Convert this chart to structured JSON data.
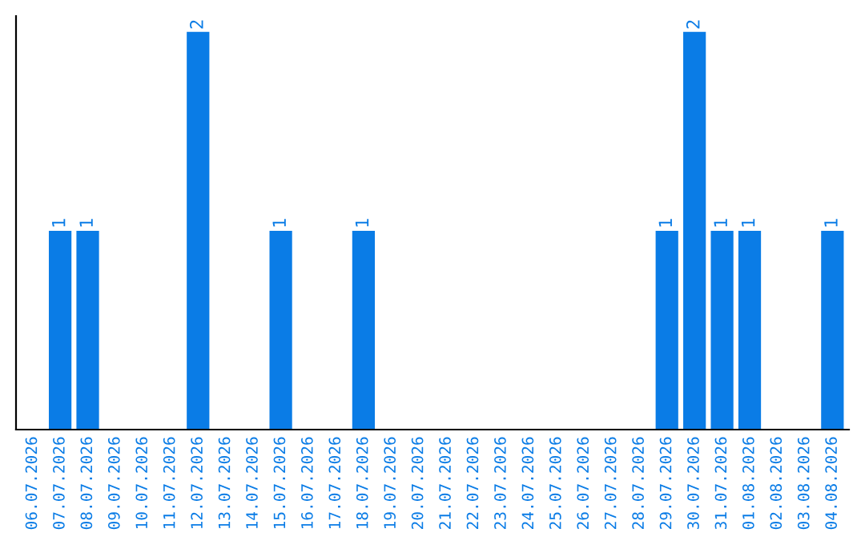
{
  "chart_data": {
    "type": "bar",
    "categories": [
      "06.07.2026",
      "07.07.2026",
      "08.07.2026",
      "09.07.2026",
      "10.07.2026",
      "11.07.2026",
      "12.07.2026",
      "13.07.2026",
      "14.07.2026",
      "15.07.2026",
      "16.07.2026",
      "17.07.2026",
      "18.07.2026",
      "19.07.2026",
      "20.07.2026",
      "21.07.2026",
      "22.07.2026",
      "23.07.2026",
      "24.07.2026",
      "25.07.2026",
      "26.07.2026",
      "27.07.2026",
      "28.07.2026",
      "29.07.2026",
      "30.07.2026",
      "31.07.2026",
      "01.08.2026",
      "02.08.2026",
      "03.08.2026",
      "04.08.2026"
    ],
    "values": [
      0,
      1,
      1,
      0,
      0,
      0,
      2,
      0,
      0,
      1,
      0,
      0,
      1,
      0,
      0,
      0,
      0,
      0,
      0,
      0,
      0,
      0,
      0,
      1,
      2,
      1,
      1,
      0,
      0,
      1
    ],
    "value_labels": [
      null,
      "1",
      "1",
      null,
      null,
      null,
      "2",
      null,
      null,
      "1",
      null,
      null,
      "1",
      null,
      null,
      null,
      null,
      null,
      null,
      null,
      null,
      null,
      null,
      "1",
      "2",
      "1",
      "1",
      null,
      null,
      "1"
    ],
    "color": "#0a7ce6",
    "grid": false,
    "legend": false
  }
}
